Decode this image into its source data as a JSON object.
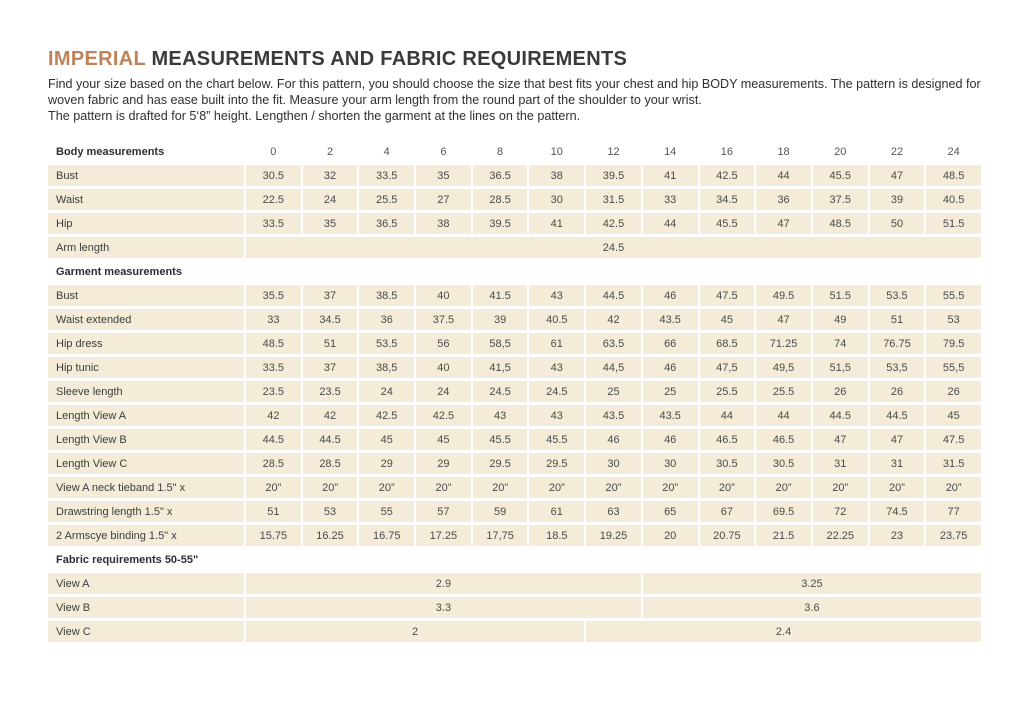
{
  "title": {
    "highlight": "IMPERIAL",
    "rest": " MEASUREMENTS AND FABRIC REQUIREMENTS"
  },
  "intro": {
    "p1": "Find your size based on the chart below. For this pattern, you should choose the size that best fits your chest and hip BODY measurements. The pattern is designed for woven fabric and has ease built into the fit. Measure your arm length from the round part of the shoulder to your wrist.",
    "p2": "The pattern is drafted for 5‘8” height. Lengthen / shorten the garment at the lines on the pattern."
  },
  "colors": {
    "accent": "#c08257",
    "cell_background": "#f4ecd9",
    "text": "#3c3c3c"
  },
  "table": {
    "sizes": [
      "0",
      "2",
      "4",
      "6",
      "8",
      "10",
      "12",
      "14",
      "16",
      "18",
      "20",
      "22",
      "24"
    ],
    "sections": [
      {
        "header": "Body measurements",
        "show_sizes": true,
        "rows": [
          {
            "label": "Bust",
            "values": [
              "30.5",
              "32",
              "33.5",
              "35",
              "36.5",
              "38",
              "39.5",
              "41",
              "42.5",
              "44",
              "45.5",
              "47",
              "48.5"
            ]
          },
          {
            "label": "Waist",
            "values": [
              "22.5",
              "24",
              "25.5",
              "27",
              "28.5",
              "30",
              "31.5",
              "33",
              "34.5",
              "36",
              "37.5",
              "39",
              "40.5"
            ]
          },
          {
            "label": "Hip",
            "values": [
              "33.5",
              "35",
              "36.5",
              "38",
              "39.5",
              "41",
              "42.5",
              "44",
              "45.5",
              "47",
              "48.5",
              "50",
              "51.5"
            ]
          },
          {
            "label": "Arm length",
            "spans": [
              {
                "cols": 13,
                "value": "24.5"
              }
            ]
          }
        ]
      },
      {
        "header": "Garment measurements",
        "show_sizes": false,
        "rows": [
          {
            "label": "Bust",
            "values": [
              "35.5",
              "37",
              "38.5",
              "40",
              "41.5",
              "43",
              "44.5",
              "46",
              "47.5",
              "49.5",
              "51.5",
              "53.5",
              "55.5"
            ]
          },
          {
            "label": "Waist extended",
            "values": [
              "33",
              "34.5",
              "36",
              "37.5",
              "39",
              "40.5",
              "42",
              "43.5",
              "45",
              "47",
              "49",
              "51",
              "53"
            ]
          },
          {
            "label": "Hip dress",
            "values": [
              "48.5",
              "51",
              "53.5",
              "56",
              "58,5",
              "61",
              "63.5",
              "66",
              "68.5",
              "71.25",
              "74",
              "76.75",
              "79.5"
            ]
          },
          {
            "label": "Hip tunic",
            "values": [
              "33.5",
              "37",
              "38,5",
              "40",
              "41,5",
              "43",
              "44,5",
              "46",
              "47,5",
              "49,5",
              "51,5",
              "53,5",
              "55,5"
            ]
          },
          {
            "label": "Sleeve length",
            "values": [
              "23.5",
              "23.5",
              "24",
              "24",
              "24.5",
              "24.5",
              "25",
              "25",
              "25.5",
              "25.5",
              "26",
              "26",
              "26"
            ]
          },
          {
            "label": "Length View A",
            "values": [
              "42",
              "42",
              "42.5",
              "42.5",
              "43",
              "43",
              "43.5",
              "43.5",
              "44",
              "44",
              "44.5",
              "44.5",
              "45"
            ]
          },
          {
            "label": "Length View B",
            "values": [
              "44.5",
              "44.5",
              "45",
              "45",
              "45.5",
              "45.5",
              "46",
              "46",
              "46.5",
              "46.5",
              "47",
              "47",
              "47.5"
            ]
          },
          {
            "label": "Length View C",
            "values": [
              "28.5",
              "28.5",
              "29",
              "29",
              "29.5",
              "29.5",
              "30",
              "30",
              "30.5",
              "30.5",
              "31",
              "31",
              "31.5"
            ]
          },
          {
            "label": "View A neck tieband 1.5\" x",
            "values": [
              "20”",
              "20”",
              "20”",
              "20”",
              "20”",
              "20”",
              "20”",
              "20”",
              "20”",
              "20”",
              "20”",
              "20”",
              "20”"
            ]
          },
          {
            "label": "Drawstring length 1.5\" x",
            "values": [
              "51",
              "53",
              "55",
              "57",
              "59",
              "61",
              "63",
              "65",
              "67",
              "69.5",
              "72",
              "74.5",
              "77"
            ]
          },
          {
            "label": "2 Armscye binding 1.5\" x",
            "values": [
              "15.75",
              "16.25",
              "16.75",
              "17.25",
              "17,75",
              "18.5",
              "19.25",
              "20",
              "20.75",
              "21.5",
              "22.25",
              "23",
              "23.75"
            ]
          }
        ]
      },
      {
        "header": "Fabric requirements 50-55\"",
        "show_sizes": false,
        "rows": [
          {
            "label": "View A",
            "spans": [
              {
                "cols": 7,
                "value": "2.9"
              },
              {
                "cols": 6,
                "value": "3.25"
              }
            ]
          },
          {
            "label": "View B",
            "spans": [
              {
                "cols": 7,
                "value": "3.3"
              },
              {
                "cols": 6,
                "value": "3.6"
              }
            ]
          },
          {
            "label": "View C",
            "spans": [
              {
                "cols": 6,
                "value": "2"
              },
              {
                "cols": 7,
                "value": "2.4"
              }
            ]
          }
        ]
      }
    ]
  }
}
